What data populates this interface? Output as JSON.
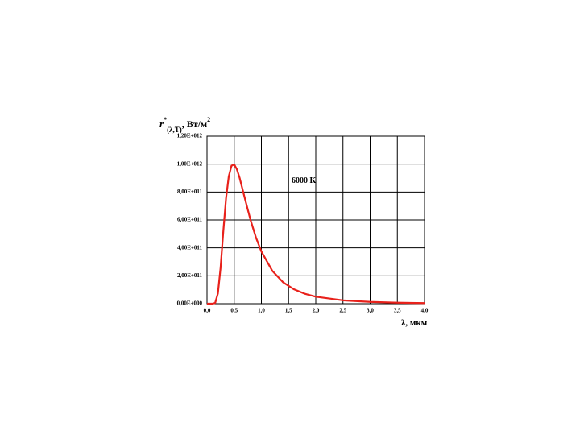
{
  "chart_data": {
    "type": "line",
    "ylabel": {
      "symbol": "r",
      "sup": "*",
      "sub": "(λ,T)",
      "unit": ", Вт/м",
      "unit_sup": "2"
    },
    "xlabel": "λ, мкм",
    "annotation": "6000 K",
    "x": [
      0,
      0.1,
      0.15,
      0.2,
      0.25,
      0.3,
      0.35,
      0.4,
      0.45,
      0.5,
      0.55,
      0.6,
      0.7,
      0.8,
      0.9,
      1.0,
      1.2,
      1.4,
      1.6,
      1.8,
      2.0,
      2.5,
      3.0,
      3.5,
      4.0
    ],
    "values": [
      0,
      0,
      5600000000.0,
      73000000000.0,
      260000000000.0,
      520000000000.0,
      755000000000.0,
      912000000000.0,
      988000000000.0,
      998000000000.0,
      962000000000.0,
      901000000000.0,
      748000000000.0,
      600000000000.0,
      474000000000.0,
      374000000000.0,
      236000000000.0,
      153000000000.0,
      103000000000.0,
      71000000000.0,
      50000000000.0,
      24000000000.0,
      13000000000.0,
      7200000000.0,
      4400000000.0
    ],
    "color": "#e8211b",
    "xlim": [
      0,
      4
    ],
    "ylim": [
      0,
      1200000000000.0
    ],
    "xticks": [
      {
        "value": 0,
        "label": "0,0"
      },
      {
        "value": 0.5,
        "label": "0,5"
      },
      {
        "value": 1,
        "label": "1,0"
      },
      {
        "value": 1.5,
        "label": "1,5"
      },
      {
        "value": 2,
        "label": "2,0"
      },
      {
        "value": 2.5,
        "label": "2,5"
      },
      {
        "value": 3,
        "label": "3,0"
      },
      {
        "value": 3.5,
        "label": "3,5"
      },
      {
        "value": 4,
        "label": "4,0"
      }
    ],
    "yticks": [
      {
        "value": 0,
        "label": "0,00E+000"
      },
      {
        "value": 200000000000.0,
        "label": "2,00E+011"
      },
      {
        "value": 400000000000.0,
        "label": "4,00E+011"
      },
      {
        "value": 600000000000.0,
        "label": "6,00E+011"
      },
      {
        "value": 800000000000.0,
        "label": "8,00E+011"
      },
      {
        "value": 1000000000000.0,
        "label": "1,00E+012"
      },
      {
        "value": 1200000000000.0,
        "label": "1,20E+012"
      }
    ],
    "grid": true
  }
}
